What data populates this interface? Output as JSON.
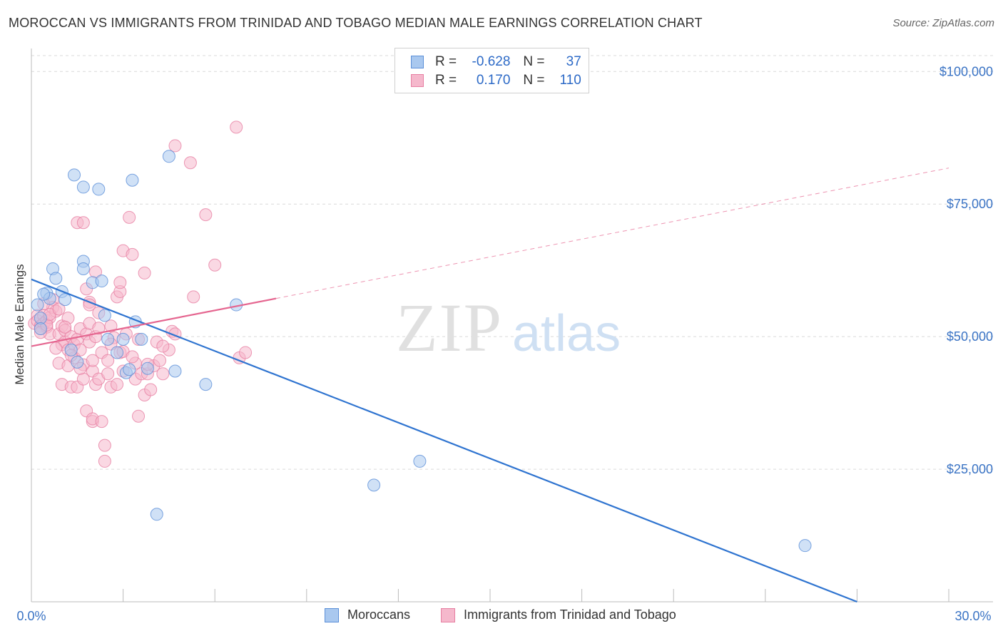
{
  "title": "MOROCCAN VS IMMIGRANTS FROM TRINIDAD AND TOBAGO MEDIAN MALE EARNINGS CORRELATION CHART",
  "source": "Source: ZipAtlas.com",
  "watermark": {
    "zip": "ZIP",
    "atlas": "atlas"
  },
  "legend": {
    "r_label": "R =",
    "n_label": "N =",
    "moroccans": {
      "r": "-0.628",
      "n": "37"
    },
    "trinidad": {
      "r": "0.170",
      "n": "110"
    }
  },
  "colors": {
    "blue_fill": "#a9c8ef",
    "blue_stroke": "#5b8fd8",
    "blue_line": "#2f74d0",
    "pink_fill": "#f5b8cc",
    "pink_stroke": "#e77fa2",
    "pink_line": "#e56690",
    "tick_text": "#3a73c4",
    "grid": "#d9d9d9"
  },
  "chart_data": {
    "type": "scatter",
    "xlabel": "",
    "ylabel": "Median Male Earnings",
    "xlim": [
      0,
      30
    ],
    "ylim": [
      0,
      103000
    ],
    "x_tick_labels": {
      "min": "0.0%",
      "max": "30.0%"
    },
    "y_ticks": [
      {
        "value": 25000,
        "label": "$25,000"
      },
      {
        "value": 50000,
        "label": "$50,000"
      },
      {
        "value": 75000,
        "label": "$75,000"
      },
      {
        "value": 100000,
        "label": "$100,000"
      }
    ],
    "series": [
      {
        "name": "Moroccans",
        "points": [
          [
            0.2,
            56000
          ],
          [
            0.3,
            53500
          ],
          [
            0.3,
            51500
          ],
          [
            0.5,
            58200
          ],
          [
            0.6,
            57200
          ],
          [
            0.7,
            62800
          ],
          [
            0.8,
            61000
          ],
          [
            1.0,
            58500
          ],
          [
            1.1,
            57000
          ],
          [
            1.3,
            47500
          ],
          [
            1.4,
            80500
          ],
          [
            1.5,
            45200
          ],
          [
            1.7,
            64200
          ],
          [
            1.7,
            62800
          ],
          [
            1.7,
            78200
          ],
          [
            2.0,
            60200
          ],
          [
            2.2,
            77800
          ],
          [
            2.3,
            60500
          ],
          [
            2.4,
            54000
          ],
          [
            2.5,
            49500
          ],
          [
            2.8,
            47000
          ],
          [
            3.0,
            49500
          ],
          [
            3.1,
            43200
          ],
          [
            3.2,
            43800
          ],
          [
            3.3,
            79500
          ],
          [
            3.4,
            52800
          ],
          [
            3.6,
            49500
          ],
          [
            3.8,
            44000
          ],
          [
            4.1,
            16500
          ],
          [
            4.5,
            84000
          ],
          [
            4.7,
            43500
          ],
          [
            5.7,
            41000
          ],
          [
            6.7,
            56000
          ],
          [
            11.2,
            22000
          ],
          [
            12.7,
            26500
          ],
          [
            25.3,
            10600
          ],
          [
            0.4,
            58000
          ]
        ],
        "trend": {
          "x": [
            0,
            27
          ],
          "y": [
            60800,
            0
          ]
        }
      },
      {
        "name": "Immigrants from Trinidad and Tobago",
        "points": [
          [
            0.1,
            52500
          ],
          [
            0.2,
            54000
          ],
          [
            0.2,
            53000
          ],
          [
            0.3,
            52000
          ],
          [
            0.3,
            51500
          ],
          [
            0.4,
            54000
          ],
          [
            0.4,
            52500
          ],
          [
            0.5,
            53000
          ],
          [
            0.5,
            51800
          ],
          [
            0.6,
            50500
          ],
          [
            0.6,
            53600
          ],
          [
            0.7,
            57000
          ],
          [
            0.7,
            55500
          ],
          [
            0.8,
            54800
          ],
          [
            0.9,
            50500
          ],
          [
            0.9,
            45000
          ],
          [
            1.0,
            52000
          ],
          [
            1.0,
            48500
          ],
          [
            1.0,
            41000
          ],
          [
            1.1,
            49000
          ],
          [
            1.1,
            51200
          ],
          [
            1.2,
            53500
          ],
          [
            1.2,
            47500
          ],
          [
            1.2,
            44500
          ],
          [
            1.3,
            50000
          ],
          [
            1.3,
            40500
          ],
          [
            1.4,
            48500
          ],
          [
            1.4,
            46000
          ],
          [
            1.5,
            71500
          ],
          [
            1.5,
            40500
          ],
          [
            1.5,
            49500
          ],
          [
            1.6,
            51500
          ],
          [
            1.6,
            47500
          ],
          [
            1.7,
            71500
          ],
          [
            1.7,
            44700
          ],
          [
            1.7,
            42000
          ],
          [
            1.8,
            59000
          ],
          [
            1.8,
            50500
          ],
          [
            1.8,
            36000
          ],
          [
            1.9,
            56500
          ],
          [
            1.9,
            56000
          ],
          [
            1.9,
            49000
          ],
          [
            2.0,
            43500
          ],
          [
            2.0,
            45500
          ],
          [
            2.0,
            34000
          ],
          [
            2.0,
            34500
          ],
          [
            2.1,
            41000
          ],
          [
            2.1,
            50000
          ],
          [
            2.1,
            62200
          ],
          [
            2.2,
            42000
          ],
          [
            2.2,
            54500
          ],
          [
            2.3,
            47000
          ],
          [
            2.3,
            34000
          ],
          [
            2.4,
            26500
          ],
          [
            2.4,
            29500
          ],
          [
            2.5,
            45500
          ],
          [
            2.5,
            43000
          ],
          [
            2.6,
            52000
          ],
          [
            2.6,
            40500
          ],
          [
            2.7,
            49800
          ],
          [
            2.8,
            57500
          ],
          [
            2.8,
            41000
          ],
          [
            2.9,
            58500
          ],
          [
            2.9,
            60200
          ],
          [
            2.9,
            47000
          ],
          [
            3.0,
            43500
          ],
          [
            3.0,
            66200
          ],
          [
            3.1,
            50500
          ],
          [
            3.2,
            72500
          ],
          [
            3.3,
            65500
          ],
          [
            3.4,
            45000
          ],
          [
            3.4,
            42000
          ],
          [
            3.5,
            49500
          ],
          [
            3.5,
            35000
          ],
          [
            3.6,
            43000
          ],
          [
            3.7,
            62000
          ],
          [
            3.7,
            39000
          ],
          [
            3.8,
            43000
          ],
          [
            3.9,
            40000
          ],
          [
            4.0,
            44500
          ],
          [
            4.1,
            49000
          ],
          [
            4.2,
            45500
          ],
          [
            4.3,
            43000
          ],
          [
            4.5,
            47500
          ],
          [
            4.6,
            51000
          ],
          [
            4.7,
            50500
          ],
          [
            4.7,
            86000
          ],
          [
            5.2,
            82800
          ],
          [
            5.3,
            57500
          ],
          [
            5.7,
            73000
          ],
          [
            6.0,
            63500
          ],
          [
            6.7,
            89500
          ],
          [
            6.8,
            46000
          ],
          [
            7.0,
            47000
          ],
          [
            0.3,
            50800
          ],
          [
            0.5,
            52200
          ],
          [
            0.6,
            54200
          ],
          [
            0.8,
            47800
          ],
          [
            0.9,
            55200
          ],
          [
            1.1,
            51800
          ],
          [
            1.3,
            46500
          ],
          [
            1.6,
            44000
          ],
          [
            1.9,
            52500
          ],
          [
            2.2,
            51600
          ],
          [
            2.6,
            48600
          ],
          [
            3.0,
            47200
          ],
          [
            3.3,
            46200
          ],
          [
            3.8,
            44800
          ],
          [
            4.3,
            48200
          ],
          [
            0.4,
            56200
          ]
        ],
        "trend": {
          "x": [
            0,
            8
          ],
          "y": [
            48200,
            57200
          ]
        },
        "trend_dashed": {
          "x": [
            8,
            30
          ],
          "y": [
            57200,
            81800
          ]
        }
      }
    ]
  }
}
